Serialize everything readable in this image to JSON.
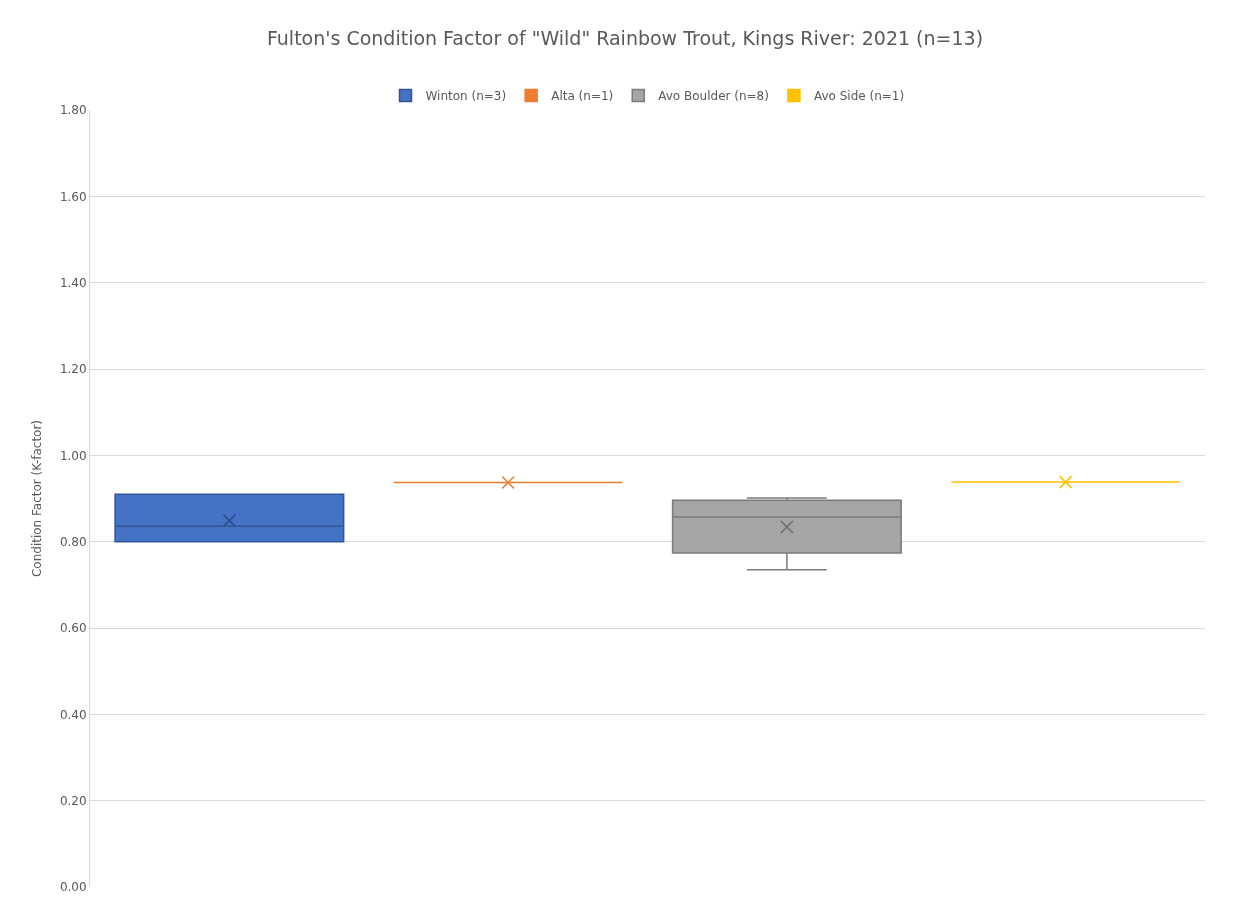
{
  "chart_data": {
    "type": "box",
    "title": "Fulton's Condition Factor of \"Wild\" Rainbow Trout, Kings River: 2021 (n=13)",
    "ylabel": "Condition Factor (K-factor)",
    "categories": [
      null
    ],
    "series": [
      {
        "name": "Winton (n=3)",
        "color": "#4472c4",
        "boxes": [
          {
            "low": 0.8,
            "q1": 0.8,
            "median": 0.836,
            "q3": 0.91,
            "high": 0.91,
            "mean": 0.849
          }
        ]
      },
      {
        "name": "Alta (n=1)",
        "color": "#ed7d31",
        "boxes": [
          {
            "low": 0.937,
            "q1": 0.937,
            "median": 0.937,
            "q3": 0.937,
            "high": 0.937,
            "mean": 0.937
          }
        ]
      },
      {
        "name": "Avo Boulder (n=8)",
        "color": "#a5a5a5",
        "boxes": [
          {
            "low": 0.735,
            "q1": 0.774,
            "median": 0.857,
            "q3": 0.896,
            "high": 0.901,
            "mean": 0.834
          }
        ]
      },
      {
        "name": "Avo Side (n=1)",
        "color": "#ffc000",
        "boxes": [
          {
            "low": 0.938,
            "q1": 0.938,
            "median": 0.938,
            "q3": 0.938,
            "high": 0.938,
            "mean": 0.938
          }
        ]
      }
    ],
    "ylim": [
      0,
      1.8
    ],
    "yticks": [
      {
        "value": 0,
        "label": "0.00"
      },
      {
        "value": 0.2,
        "label": "0.20"
      },
      {
        "value": 0.4,
        "label": "0.40"
      },
      {
        "value": 0.6,
        "label": "0.60"
      },
      {
        "value": 0.8,
        "label": "0.80"
      },
      {
        "value": 1.0,
        "label": "1.00"
      },
      {
        "value": 1.2,
        "label": "1.20"
      },
      {
        "value": 1.4,
        "label": "1.40"
      },
      {
        "value": 1.6,
        "label": "1.60"
      },
      {
        "value": 1.8,
        "label": "1.80"
      }
    ],
    "grid": "y",
    "legend": "top",
    "marker": "cross"
  }
}
